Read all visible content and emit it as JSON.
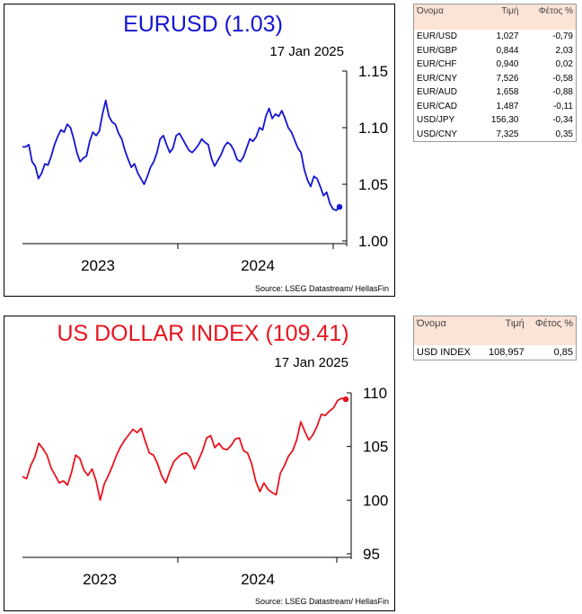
{
  "charts": [
    {
      "title": "EURUSD (1.03)",
      "date": "17 Jan 2025",
      "source": "Source: LSEG Datastream/ HellasFin",
      "color": "#1414d2"
    },
    {
      "title": "US DOLLAR INDEX (109.41)",
      "date": "17 Jan 2025",
      "source": "Source: LSEG Datastream/ HellasFin",
      "color": "#e8141e"
    }
  ],
  "chart_data": [
    {
      "type": "line",
      "title": "EURUSD (1.03)",
      "date": "17 Jan 2025",
      "x_ticks": [
        "2023",
        "2024"
      ],
      "ylim": [
        1.0,
        1.15
      ],
      "y_ticks": [
        "1.00",
        "1.05",
        "1.10",
        "1.15"
      ],
      "series": [
        {
          "values": [
            1.083,
            1.083,
            1.085,
            1.07,
            1.066,
            1.055,
            1.06,
            1.068,
            1.067,
            1.075,
            1.085,
            1.092,
            1.098,
            1.096,
            1.103,
            1.1,
            1.09,
            1.078,
            1.07,
            1.073,
            1.075,
            1.088,
            1.096,
            1.093,
            1.097,
            1.112,
            1.124,
            1.11,
            1.105,
            1.103,
            1.095,
            1.09,
            1.08,
            1.072,
            1.065,
            1.068,
            1.06,
            1.055,
            1.05,
            1.057,
            1.065,
            1.07,
            1.078,
            1.09,
            1.093,
            1.085,
            1.078,
            1.082,
            1.093,
            1.095,
            1.09,
            1.085,
            1.08,
            1.078,
            1.081,
            1.085,
            1.09,
            1.087,
            1.085,
            1.073,
            1.066,
            1.071,
            1.076,
            1.083,
            1.087,
            1.085,
            1.08,
            1.072,
            1.07,
            1.074,
            1.082,
            1.09,
            1.088,
            1.092,
            1.1,
            1.098,
            1.11,
            1.117,
            1.108,
            1.112,
            1.11,
            1.115,
            1.108,
            1.1,
            1.096,
            1.089,
            1.082,
            1.078,
            1.063,
            1.054,
            1.048,
            1.057,
            1.055,
            1.048,
            1.04,
            1.043,
            1.033,
            1.028,
            1.027,
            1.03
          ]
        }
      ]
    },
    {
      "type": "line",
      "title": "US DOLLAR INDEX (109.41)",
      "date": "17 Jan 2025",
      "x_ticks": [
        "2023",
        "2024"
      ],
      "ylim": [
        95,
        110
      ],
      "y_ticks": [
        "95",
        "100",
        "105",
        "110"
      ],
      "series": [
        {
          "values": [
            102.2,
            102.0,
            103.2,
            104.0,
            105.3,
            104.8,
            104.2,
            103.0,
            102.3,
            101.6,
            101.8,
            101.4,
            102.6,
            104.2,
            103.9,
            102.8,
            102.3,
            102.9,
            101.8,
            100.0,
            101.5,
            102.3,
            103.2,
            104.2,
            105.0,
            105.6,
            106.1,
            106.6,
            106.3,
            106.7,
            105.5,
            104.4,
            104.2,
            103.4,
            102.3,
            101.6,
            102.7,
            103.6,
            104.0,
            104.3,
            104.4,
            104.0,
            102.9,
            103.7,
            104.6,
            105.8,
            106.0,
            104.9,
            105.3,
            104.8,
            104.7,
            105.1,
            105.7,
            105.8,
            104.6,
            104.4,
            103.4,
            101.8,
            100.8,
            101.6,
            101.0,
            100.7,
            100.5,
            102.5,
            103.2,
            104.1,
            104.6,
            105.6,
            107.3,
            106.4,
            105.6,
            106.1,
            106.9,
            108.0,
            107.9,
            108.3,
            108.6,
            109.3,
            109.5,
            109.4
          ]
        }
      ]
    }
  ],
  "tables": [
    {
      "headers": [
        "Όνομα",
        "Τιμή",
        "Φέτος %"
      ],
      "rows": [
        [
          "EUR/USD",
          "1,027",
          "-0,79"
        ],
        [
          "EUR/GBP",
          "0,844",
          "2,03"
        ],
        [
          "EUR/CHF",
          "0,940",
          "0,02"
        ],
        [
          "EUR/CNY",
          "7,526",
          "-0,58"
        ],
        [
          "EUR/AUD",
          "1,658",
          "-0,88"
        ],
        [
          "EUR/CAD",
          "1,487",
          "-0,11"
        ],
        [
          "USD/JPY",
          "156,30",
          "-0,34"
        ],
        [
          "USD/CNY",
          "7,325",
          "0,35"
        ]
      ]
    },
    {
      "headers": [
        "Όνομα",
        "Τιμή",
        "Φέτος %"
      ],
      "rows": [
        [
          "USD INDEX",
          "108,957",
          "0,85"
        ]
      ]
    }
  ]
}
